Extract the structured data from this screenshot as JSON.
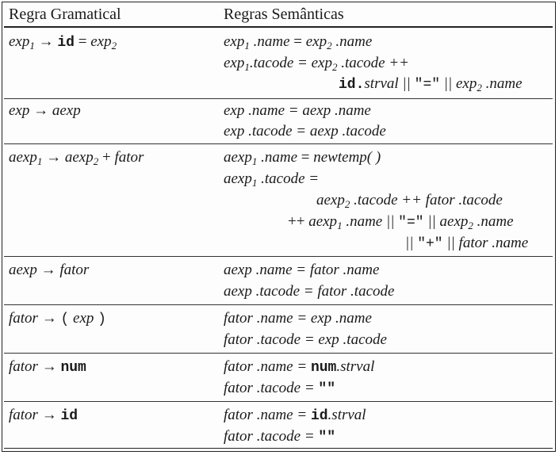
{
  "headers": {
    "left": "Regra Gramatical",
    "right": "Regras Semânticas"
  },
  "rows": [
    {
      "production": {
        "pre": "exp",
        "s1": "1",
        "arrow": " → ",
        "kw": "id",
        "eq": " = ",
        "post": "exp",
        "s2": "2"
      },
      "semantics": [
        {
          "a": "exp",
          "s": "1",
          "b": " .name ",
          "op": "=",
          "c": " exp",
          "s2": "2",
          "d": " .name"
        },
        {
          "a": "exp",
          "s": "1",
          "b": ".tacode = exp",
          "s2": "2",
          "d": " .tacode ++"
        },
        {
          "kw": "id.",
          "a": "strval || ",
          "q": "\"=\"",
          "b": " || exp",
          "s2": "2",
          "d": " .name"
        }
      ]
    },
    {
      "production": {
        "text": "exp → aexp"
      },
      "semantics": [
        {
          "text": "exp .name = aexp .name"
        },
        {
          "text": "exp .tacode = aexp .tacode"
        }
      ]
    },
    {
      "production": {
        "pre": "aexp",
        "s1": "1",
        "arrow": " → ",
        "mid": "aexp",
        "s2": "2",
        "plus": " + ",
        "post": "fator"
      },
      "semantics": [
        {
          "a": "aexp",
          "s": "1",
          "b": " .name ",
          "op": "=",
          "c": " newtemp( )"
        },
        {
          "a": "aexp",
          "s": "1",
          "b": " .tacode ="
        },
        {
          "a": "aexp",
          "s": "2",
          "b": " .tacode ++ fator .tacode"
        },
        {
          "pre": "++ ",
          "a": "aexp",
          "s": "1",
          "b": " .name || ",
          "q": "\"=\"",
          "c": " || aexp",
          "s2": "2",
          "d": " .name"
        },
        {
          "a": "|| ",
          "q": "\"+\"",
          "b": " || fator .name"
        }
      ]
    },
    {
      "production": {
        "text": "aexp → fator"
      },
      "semantics": [
        {
          "text": "aexp .name = fator .name"
        },
        {
          "text": "aexp .tacode = fator .tacode"
        }
      ]
    },
    {
      "production": {
        "pre": "fator → ",
        "lp": "(",
        "mid": " exp ",
        "rp": ")"
      },
      "semantics": [
        {
          "text": "fator .name = exp .name"
        },
        {
          "text": "fator .tacode = exp .tacode"
        }
      ]
    },
    {
      "production": {
        "pre": "fator → ",
        "kw": "num"
      },
      "semantics": [
        {
          "a": "fator .name = ",
          "kw": "num",
          "b": ".strval"
        },
        {
          "a": "fator .tacode = ",
          "q": "\"\""
        }
      ]
    },
    {
      "production": {
        "pre": "fator → ",
        "kw": "id"
      },
      "semantics": [
        {
          "a": "fator .name = ",
          "kw": "id",
          "b": ".strval"
        },
        {
          "a": "fator .tacode = ",
          "q": "\"\""
        }
      ]
    }
  ]
}
